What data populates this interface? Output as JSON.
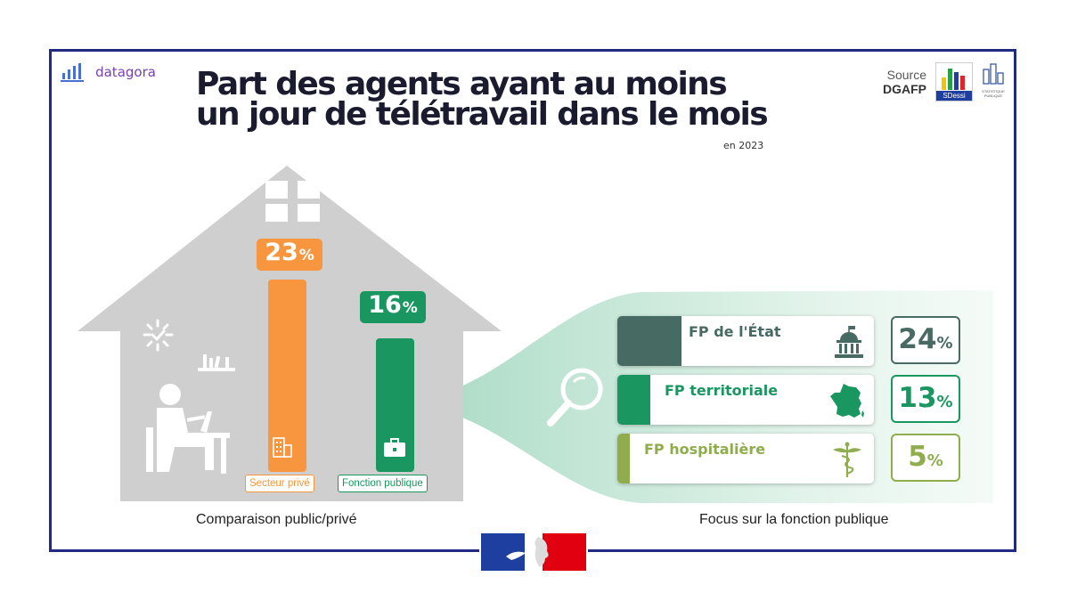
{
  "header": {
    "logo_text": "datagora",
    "title_line1": "Part des agents ayant au moins",
    "title_line2": "un jour de télétravail dans le mois",
    "subtitle": "en 2023",
    "source_label": "Source",
    "source_name": "DGAFP",
    "sdessi_label": "SDessi",
    "stat_label_1": "STATISTIQUE",
    "stat_label_2": "PUBLIQUE"
  },
  "chart_data": [
    {
      "type": "bar",
      "title": "Comparaison public/privé",
      "categories": [
        "Secteur privé",
        "Fonction publique"
      ],
      "values": [
        23,
        16
      ],
      "unit": "%",
      "colors": [
        "#f7963f",
        "#1a9660"
      ]
    },
    {
      "type": "bar",
      "title": "Focus sur la fonction publique",
      "categories": [
        "FP de l'État",
        "FP territoriale",
        "FP hospitalière"
      ],
      "values": [
        24,
        13,
        5
      ],
      "unit": "%",
      "colors": [
        "#476a62",
        "#1a9660",
        "#8fad4c"
      ]
    }
  ],
  "icons": [
    "bar-chart-logo-icon",
    "window-icon",
    "sun-icon",
    "shelf-icon",
    "person-at-desk-icon",
    "office-building-icon",
    "briefcase-icon",
    "magnifier-icon",
    "government-building-icon",
    "france-map-icon",
    "caduceus-icon",
    "marianne-flag-icon"
  ]
}
